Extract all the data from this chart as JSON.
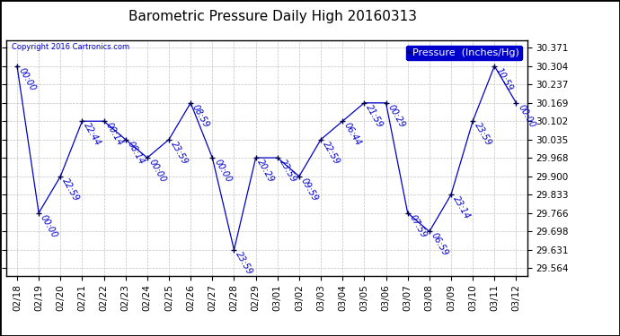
{
  "title": "Barometric Pressure Daily High 20160313",
  "legend_label": "Pressure  (Inches/Hg)",
  "copyright_text": "Copyright 2016 Cartronics.com",
  "background_color": "#ffffff",
  "plot_bg_color": "#ffffff",
  "line_color": "#0000cc",
  "marker_color": "#000033",
  "grid_color": "#bbbbbb",
  "ylim_min": 29.537,
  "ylim_max": 30.398,
  "yticks": [
    29.564,
    29.631,
    29.698,
    29.766,
    29.833,
    29.9,
    29.968,
    30.035,
    30.102,
    30.169,
    30.237,
    30.304,
    30.371
  ],
  "dates": [
    "02/18",
    "02/19",
    "02/20",
    "02/21",
    "02/22",
    "02/23",
    "02/24",
    "02/25",
    "02/26",
    "02/27",
    "02/28",
    "02/29",
    "03/01",
    "03/02",
    "03/03",
    "03/04",
    "03/05",
    "03/06",
    "03/07",
    "03/08",
    "03/09",
    "03/10",
    "03/11",
    "03/12"
  ],
  "values": [
    30.304,
    29.766,
    29.9,
    30.102,
    30.102,
    30.035,
    29.968,
    30.035,
    30.169,
    29.968,
    29.631,
    29.968,
    29.968,
    29.9,
    30.035,
    30.102,
    30.169,
    30.169,
    29.766,
    29.698,
    29.833,
    30.102,
    30.304,
    30.169
  ],
  "point_labels": [
    "00:00",
    "00:00",
    "22:59",
    "22:44",
    "00:14",
    "08:14",
    "00:00",
    "23:59",
    "08:59",
    "00:00",
    "23:59",
    "20:29",
    "23:59",
    "09:59",
    "22:59",
    "06:44",
    "21:59",
    "00:29",
    "07:59",
    "06:59",
    "23:14",
    "23:59",
    "10:59",
    "00:00"
  ],
  "label_fontsize": 7,
  "title_fontsize": 11,
  "tick_fontsize": 7.5,
  "legend_fontsize": 8,
  "border_color": "#000000"
}
